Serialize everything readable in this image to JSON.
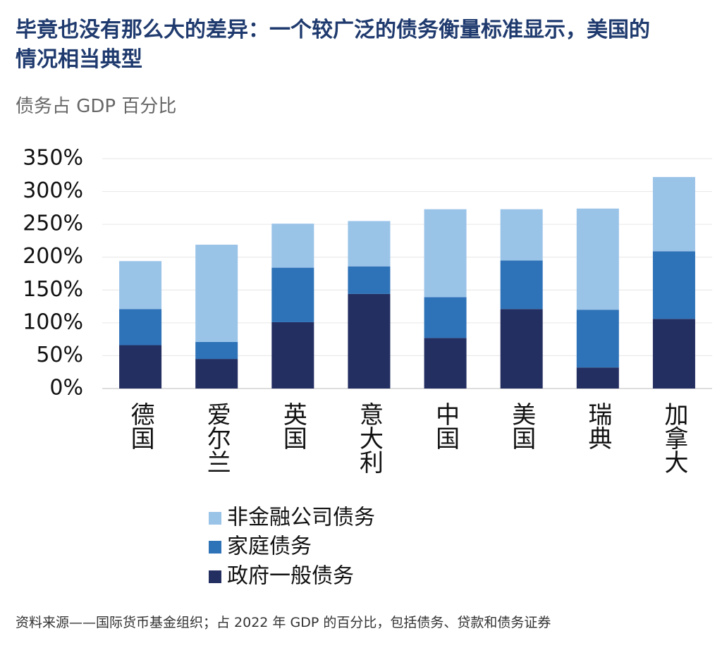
{
  "chart_data": {
    "type": "stacked-bar",
    "title": "毕竟也没有那么大的差异：一个较广泛的债务衡量标准显示，美国的情况相当典型",
    "subtitle": "债务占 GDP 百分比",
    "source": "资料来源——国际货币基金组织；占 2022 年 GDP 的百分比，包括债务、贷款和债务证券",
    "categories": [
      "德国",
      "爱尔兰",
      "英国",
      "意大利",
      "中国",
      "美国",
      "瑞典",
      "加拿大"
    ],
    "series": [
      {
        "name": "政府一般债务",
        "color": "#232e61",
        "values": [
          66,
          45,
          101,
          144,
          77,
          121,
          32,
          106
        ]
      },
      {
        "name": "家庭债务",
        "color": "#2e72b8",
        "values": [
          55,
          26,
          83,
          42,
          62,
          74,
          88,
          103
        ]
      },
      {
        "name": "非金融公司债务",
        "color": "#9ac3e8",
        "values": [
          73,
          148,
          67,
          69,
          134,
          78,
          154,
          113
        ]
      }
    ],
    "ylim": [
      0,
      350
    ],
    "yticks": [
      {
        "value": 0,
        "label": "0%"
      },
      {
        "value": 50,
        "label": "50%"
      },
      {
        "value": 100,
        "label": "100%"
      },
      {
        "value": 150,
        "label": "150%"
      },
      {
        "value": 200,
        "label": "200%"
      },
      {
        "value": 250,
        "label": "250%"
      },
      {
        "value": 300,
        "label": "300%"
      },
      {
        "value": 350,
        "label": "350%"
      }
    ],
    "grid": true
  }
}
